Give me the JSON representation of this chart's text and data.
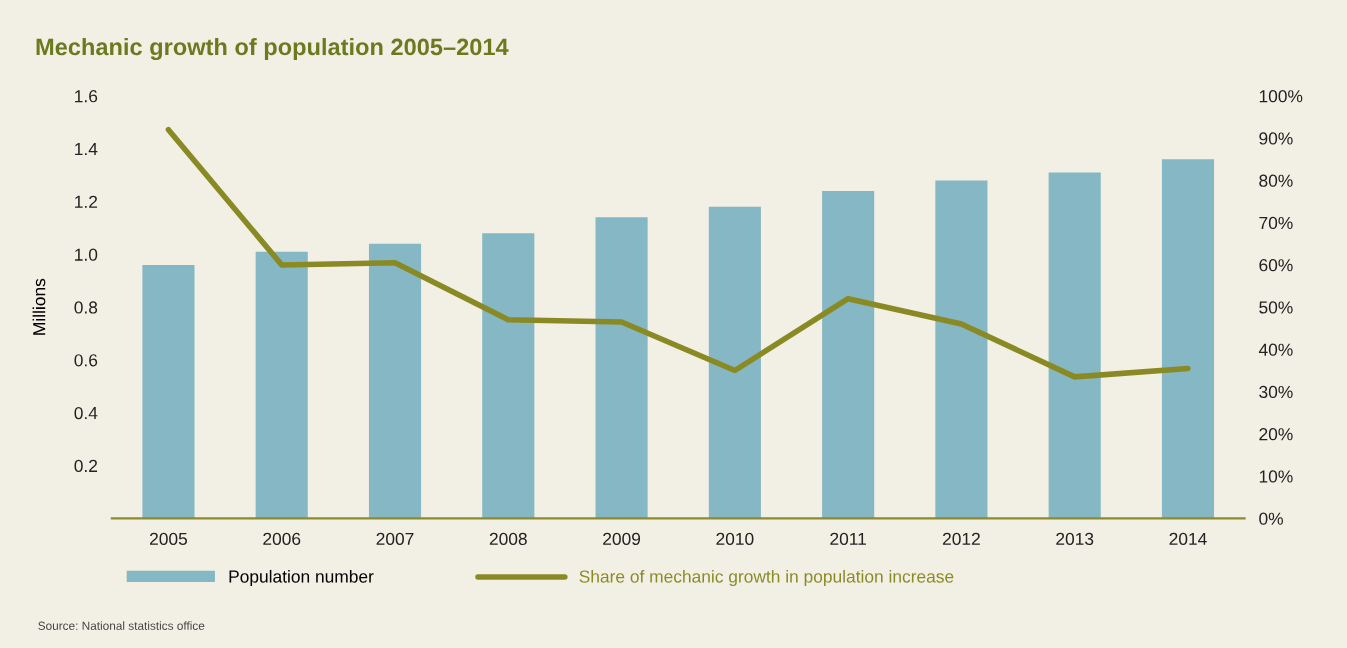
{
  "chart_data": {
    "type": "bar",
    "title": "Mechanic growth of population 2005–2014",
    "ylabel": "Millions",
    "categories": [
      "2005",
      "2006",
      "2007",
      "2008",
      "2009",
      "2010",
      "2011",
      "2012",
      "2013",
      "2014"
    ],
    "series": [
      {
        "name": "Population number",
        "color": "#85b7c4",
        "values": [
          0.96,
          1.01,
          1.04,
          1.08,
          1.14,
          1.18,
          1.24,
          1.28,
          1.31,
          1.36
        ]
      },
      {
        "name": "Share of mechanic growth in population increase",
        "type": "line",
        "axis": "y2",
        "color": "#8a8a24",
        "values": [
          92,
          60,
          60.5,
          47,
          46.5,
          35,
          52,
          46,
          33.5,
          35.5
        ]
      }
    ],
    "ylim": [
      0,
      1.6
    ],
    "yticks": [
      0.2,
      0.4,
      0.6,
      0.8,
      {
        "value": 1,
        "label": "1.0"
      },
      1.2,
      1.4,
      1.6
    ],
    "y2lim": [
      0,
      100
    ],
    "y2ticks": [
      {
        "value": 0,
        "label": "0%"
      },
      {
        "value": 10,
        "label": "10%"
      },
      {
        "value": 20,
        "label": "20%"
      },
      {
        "value": 30,
        "label": "30%"
      },
      {
        "value": 40,
        "label": "40%"
      },
      {
        "value": 50,
        "label": "50%"
      },
      {
        "value": 60,
        "label": "60%"
      },
      {
        "value": 70,
        "label": "70%"
      },
      {
        "value": 80,
        "label": "80%"
      },
      {
        "value": 90,
        "label": "90%"
      },
      {
        "value": 100,
        "label": "100%"
      }
    ],
    "legend": "bottom",
    "grid": false,
    "annotations": [
      "Source: National statistics office"
    ]
  }
}
